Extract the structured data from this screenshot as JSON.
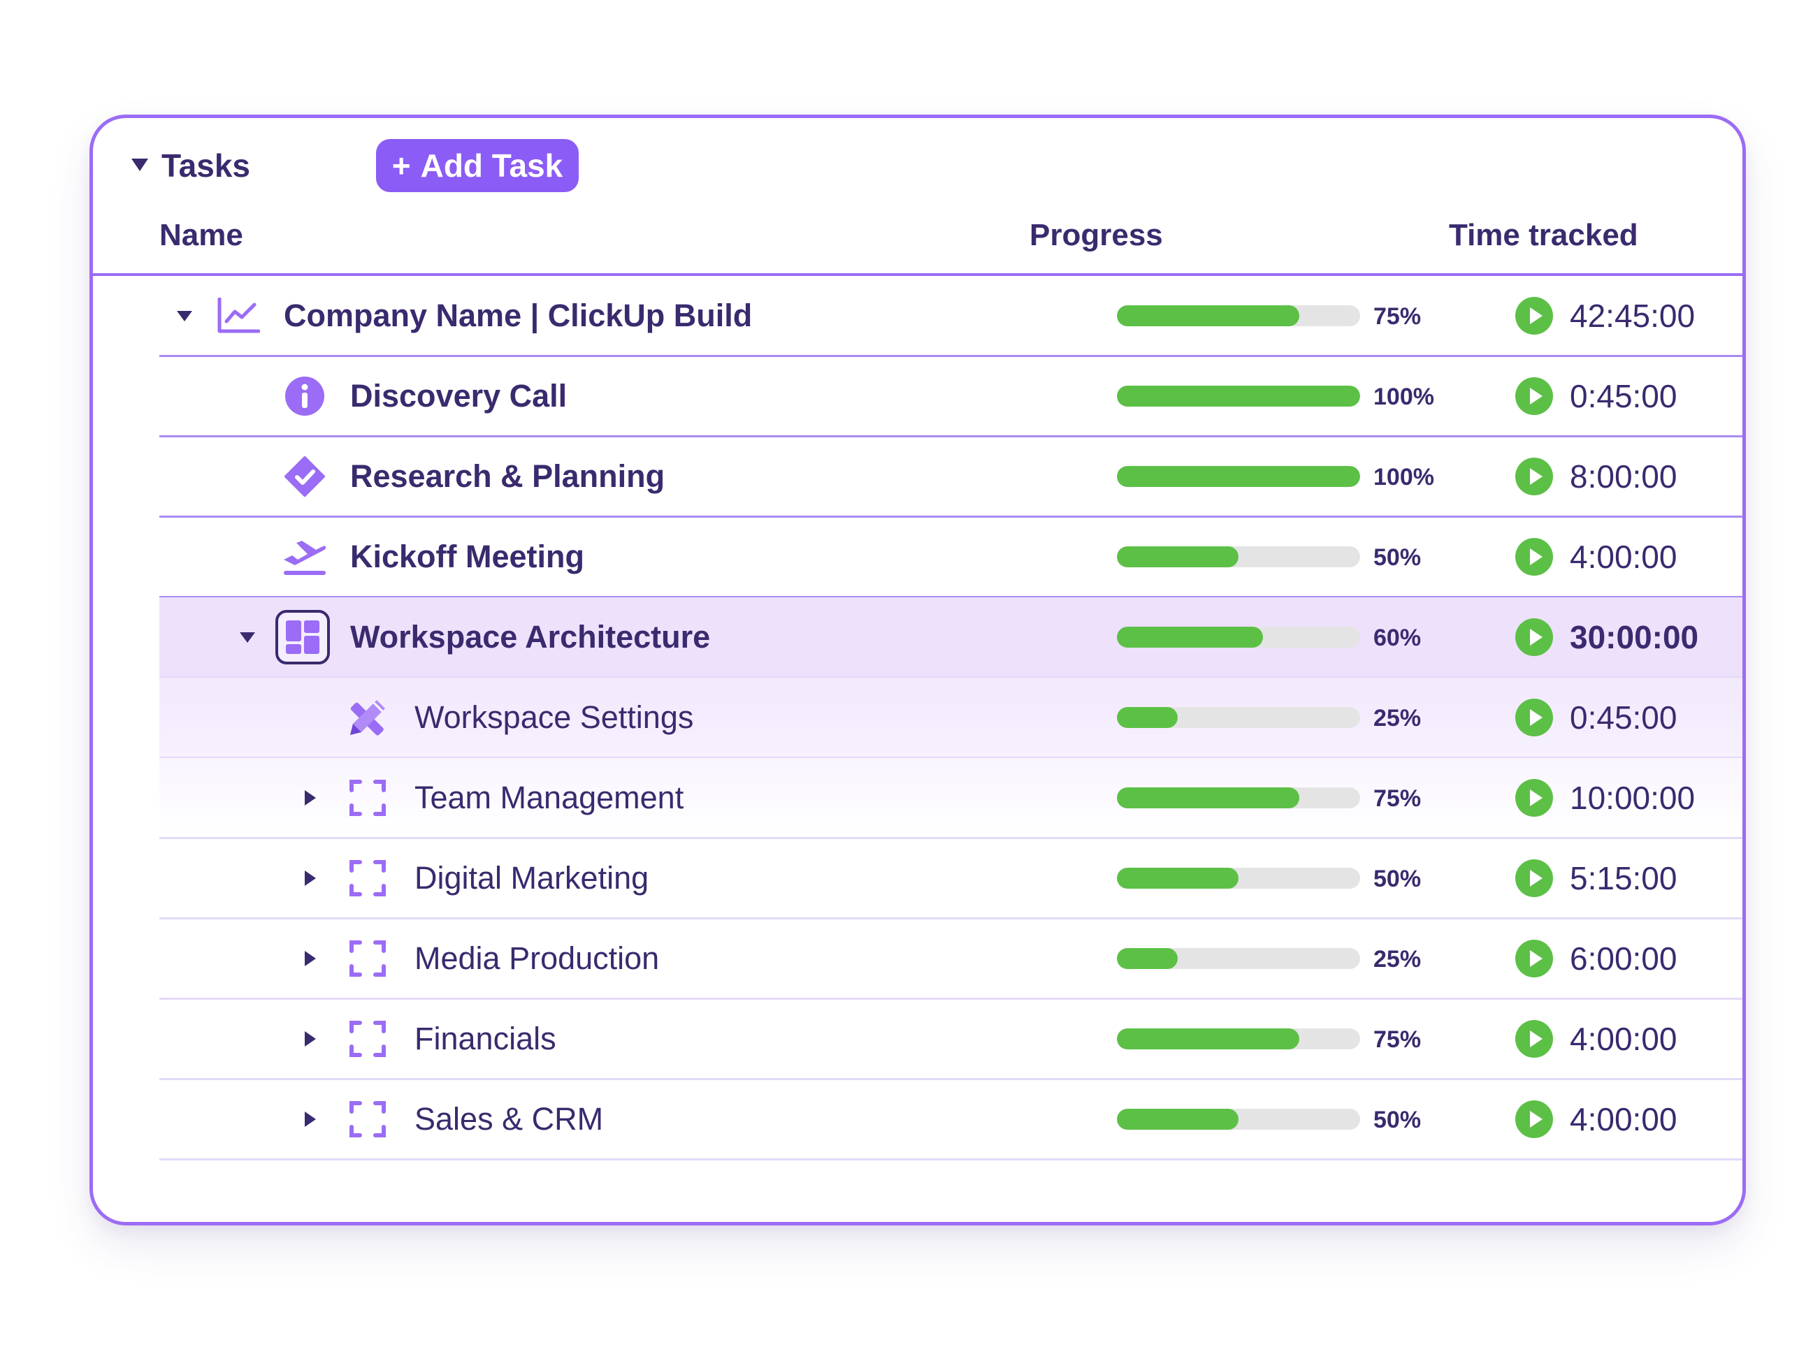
{
  "section": {
    "title": "Tasks",
    "add_button_icon": "+",
    "add_button_label": "Add Task"
  },
  "columns": {
    "name": "Name",
    "progress": "Progress",
    "time": "Time tracked"
  },
  "colors": {
    "accent": "#8b5cf6",
    "border": "#9b6cf5",
    "progress_fill": "#5cc046",
    "progress_track": "#e4e4e4",
    "highlight": "#ede1fc",
    "text": "#3a2a6e"
  },
  "rows": [
    {
      "name": "Company Name | ClickUp Build",
      "progress_pct": 75,
      "progress_label": "75%",
      "time": "42:45:00",
      "icon": "chart-line-icon",
      "caret": "expanded"
    },
    {
      "name": "Discovery Call",
      "progress_pct": 100,
      "progress_label": "100%",
      "time": "0:45:00",
      "icon": "info-icon",
      "caret": "none"
    },
    {
      "name": "Research & Planning",
      "progress_pct": 100,
      "progress_label": "100%",
      "time": "8:00:00",
      "icon": "check-badge-icon",
      "caret": "none"
    },
    {
      "name": "Kickoff Meeting",
      "progress_pct": 50,
      "progress_label": "50%",
      "time": "4:00:00",
      "icon": "plane-takeoff-icon",
      "caret": "none"
    },
    {
      "name": "Workspace Architecture",
      "progress_pct": 60,
      "progress_label": "60%",
      "time": "30:00:00",
      "icon": "layout-grid-icon",
      "caret": "expanded"
    },
    {
      "name": "Workspace Settings",
      "progress_pct": 25,
      "progress_label": "25%",
      "time": "0:45:00",
      "icon": "pencil-ruler-icon",
      "caret": "none"
    },
    {
      "name": "Team Management",
      "progress_pct": 75,
      "progress_label": "75%",
      "time": "10:00:00",
      "icon": "dashed-frame-icon",
      "caret": "collapsed"
    },
    {
      "name": "Digital Marketing",
      "progress_pct": 50,
      "progress_label": "50%",
      "time": "5:15:00",
      "icon": "dashed-frame-icon",
      "caret": "collapsed"
    },
    {
      "name": "Media Production",
      "progress_pct": 25,
      "progress_label": "25%",
      "time": "6:00:00",
      "icon": "dashed-frame-icon",
      "caret": "collapsed"
    },
    {
      "name": "Financials",
      "progress_pct": 75,
      "progress_label": "75%",
      "time": "4:00:00",
      "icon": "dashed-frame-icon",
      "caret": "collapsed"
    },
    {
      "name": "Sales & CRM",
      "progress_pct": 50,
      "progress_label": "50%",
      "time": "4:00:00",
      "icon": "dashed-frame-icon",
      "caret": "collapsed"
    }
  ]
}
